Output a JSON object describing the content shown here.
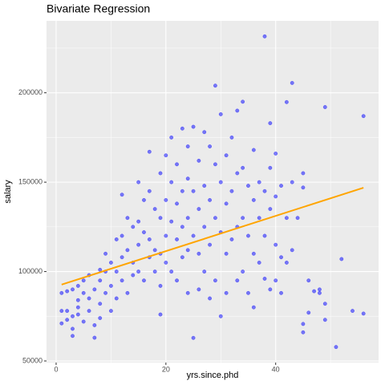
{
  "chart_data": {
    "type": "scatter",
    "title": "Bivariate Regression",
    "x_label": "yrs.since.phd",
    "y_label": "salary",
    "xlim": [
      -1.75,
      58.75
    ],
    "ylim": [
      49113,
      240232
    ],
    "xticks": [
      0,
      20,
      40
    ],
    "yticks": [
      50000,
      100000,
      150000,
      200000
    ],
    "xminor": [
      10,
      30,
      50
    ],
    "yminor": [
      75000,
      125000,
      175000,
      225000
    ],
    "grid": true,
    "points": {
      "color": "#0000ff",
      "x": [
        1,
        1,
        1,
        2,
        2,
        2,
        3,
        3,
        3,
        3,
        4,
        4,
        4,
        4,
        5,
        5,
        5,
        6,
        6,
        6,
        7,
        7,
        7,
        8,
        8,
        8,
        8,
        9,
        9,
        9,
        10,
        10,
        10,
        11,
        11,
        11,
        12,
        12,
        12,
        12,
        13,
        13,
        13,
        14,
        14,
        14,
        15,
        15,
        15,
        15,
        16,
        16,
        16,
        17,
        17,
        17,
        17,
        18,
        18,
        18,
        19,
        19,
        19,
        19,
        19,
        20,
        20,
        20,
        20,
        21,
        21,
        21,
        21,
        22,
        22,
        22,
        22,
        23,
        23,
        23,
        23,
        24,
        24,
        24,
        24,
        24,
        25,
        25,
        25,
        25,
        26,
        26,
        26,
        26,
        27,
        27,
        27,
        27,
        28,
        28,
        28,
        28,
        29,
        29,
        29,
        29,
        30,
        30,
        30,
        30,
        31,
        31,
        31,
        31,
        32,
        32,
        32,
        33,
        33,
        33,
        33,
        34,
        34,
        34,
        34,
        35,
        35,
        35,
        36,
        36,
        36,
        36,
        37,
        37,
        37,
        38,
        38,
        38,
        38,
        39,
        39,
        39,
        39,
        40,
        40,
        40,
        40,
        41,
        41,
        41,
        42,
        42,
        42,
        43,
        43,
        43,
        44,
        45,
        45,
        45,
        45,
        46,
        46,
        47,
        48,
        48,
        49,
        49,
        49,
        51,
        52,
        54,
        56,
        56
      ],
      "values": [
        88000,
        78000,
        71000,
        89000,
        78000,
        73000,
        90000,
        75000,
        68000,
        64000,
        92000,
        80000,
        84000,
        76000,
        95000,
        88000,
        72000,
        85000,
        78000,
        98000,
        90000,
        70000,
        63000,
        101000,
        95000,
        82000,
        74000,
        100000,
        110000,
        88000,
        105000,
        92000,
        78000,
        118000,
        100000,
        85000,
        143000,
        120000,
        108000,
        95000,
        130000,
        112000,
        88000,
        125000,
        105000,
        98000,
        150000,
        128000,
        115000,
        100000,
        140000,
        122000,
        95000,
        167000,
        145000,
        118000,
        108000,
        135000,
        112000,
        100000,
        155000,
        130000,
        110000,
        92000,
        76000,
        165000,
        140000,
        120000,
        105000,
        175000,
        150000,
        128000,
        100000,
        160000,
        138000,
        118000,
        95000,
        180000,
        145000,
        125000,
        108000,
        170000,
        152000,
        130000,
        112000,
        88000,
        181000,
        145000,
        120000,
        62900,
        162000,
        135000,
        110000,
        90000,
        178000,
        148000,
        125000,
        100000,
        170000,
        140000,
        115000,
        85000,
        204000,
        160000,
        130000,
        95000,
        188000,
        150000,
        122000,
        75000,
        165000,
        138000,
        110000,
        88000,
        175000,
        145000,
        118000,
        190000,
        155000,
        125000,
        95000,
        195000,
        158000,
        130000,
        100000,
        148000,
        120000,
        88000,
        168000,
        140000,
        110000,
        80000,
        150000,
        130000,
        105000,
        231545,
        145000,
        120000,
        96000,
        183000,
        158000,
        135000,
        90000,
        166000,
        142000,
        115000,
        95000,
        148000,
        108000,
        88000,
        194800,
        130000,
        105000,
        205500,
        150000,
        112000,
        130000,
        155000,
        147000,
        70700,
        66000,
        95000,
        77000,
        89000,
        90000,
        88000,
        192000,
        82000,
        73000,
        57800,
        107000,
        78000,
        186960,
        76500
      ]
    },
    "fit": {
      "color": "#ffa500",
      "x": [
        1,
        56
      ],
      "values": [
        92700,
        146900
      ]
    }
  }
}
